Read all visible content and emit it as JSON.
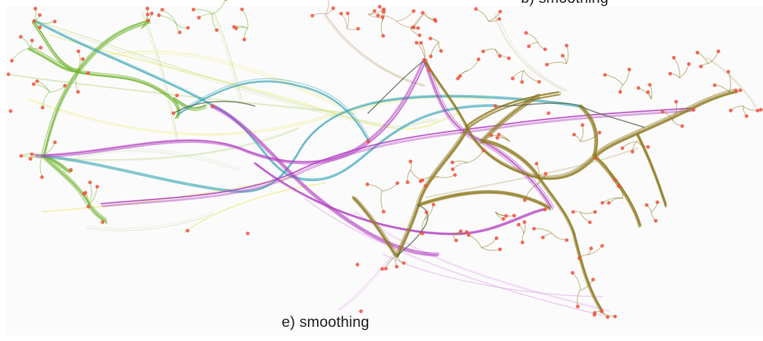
{
  "figure": {
    "caption_main": "e) smoothing",
    "caption_top_partial": "b) smoothing"
  },
  "colors": {
    "background": "#fcfbfc",
    "node": "#f2503a",
    "green": "#6fb42e",
    "olive": "#8d7a1e",
    "purple": "#b13fc0",
    "teal": "#3aa7b5",
    "yellow": "#e5e85a",
    "light_green": "#b5d67a",
    "brown": "#b08a52",
    "dark": "#4b5a3a"
  }
}
